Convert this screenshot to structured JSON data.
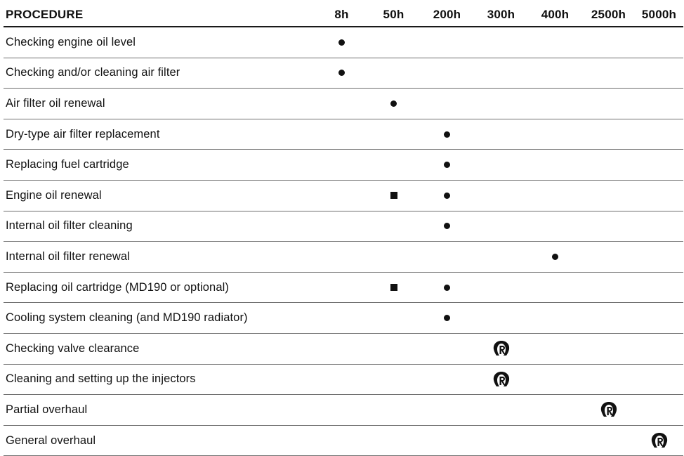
{
  "header": {
    "procedure": "PROCEDURE",
    "intervals": [
      "8h",
      "50h",
      "200h",
      "300h",
      "400h",
      "2500h",
      "5000h"
    ]
  },
  "icons": {
    "dot": "filled-circle-icon",
    "square": "filled-square-icon",
    "logo": "service-logo-icon"
  },
  "rows": [
    {
      "label": "Checking engine oil level",
      "marks": [
        "dot",
        "",
        "",
        "",
        "",
        "",
        ""
      ]
    },
    {
      "label": "Checking and/or cleaning air filter",
      "marks": [
        "dot",
        "",
        "",
        "",
        "",
        "",
        ""
      ]
    },
    {
      "label": "Air filter oil renewal",
      "marks": [
        "",
        "dot",
        "",
        "",
        "",
        "",
        ""
      ]
    },
    {
      "label": "Dry-type air filter replacement",
      "marks": [
        "",
        "",
        "dot",
        "",
        "",
        "",
        ""
      ]
    },
    {
      "label": "Replacing fuel cartridge",
      "marks": [
        "",
        "",
        "dot",
        "",
        "",
        "",
        ""
      ]
    },
    {
      "label": "Engine oil renewal",
      "marks": [
        "",
        "square",
        "dot",
        "",
        "",
        "",
        ""
      ]
    },
    {
      "label": "Internal oil filter cleaning",
      "marks": [
        "",
        "",
        "dot",
        "",
        "",
        "",
        ""
      ]
    },
    {
      "label": "Internal oil filter renewal",
      "marks": [
        "",
        "",
        "",
        "",
        "dot",
        "",
        ""
      ]
    },
    {
      "label": "Replacing oil cartridge (MD190 or optional)",
      "marks": [
        "",
        "square",
        "dot",
        "",
        "",
        "",
        ""
      ]
    },
    {
      "label": "Cooling system cleaning (and MD190 radiator)",
      "marks": [
        "",
        "",
        "dot",
        "",
        "",
        "",
        ""
      ]
    },
    {
      "label": "Checking valve clearance",
      "marks": [
        "",
        "",
        "",
        "logo",
        "",
        "",
        ""
      ]
    },
    {
      "label": "Cleaning and setting up the injectors",
      "marks": [
        "",
        "",
        "",
        "logo",
        "",
        "",
        ""
      ]
    },
    {
      "label": "Partial overhaul",
      "marks": [
        "",
        "",
        "",
        "",
        "",
        "logo",
        ""
      ]
    },
    {
      "label": "General overhaul",
      "marks": [
        "",
        "",
        "",
        "",
        "",
        "",
        "logo"
      ]
    }
  ]
}
